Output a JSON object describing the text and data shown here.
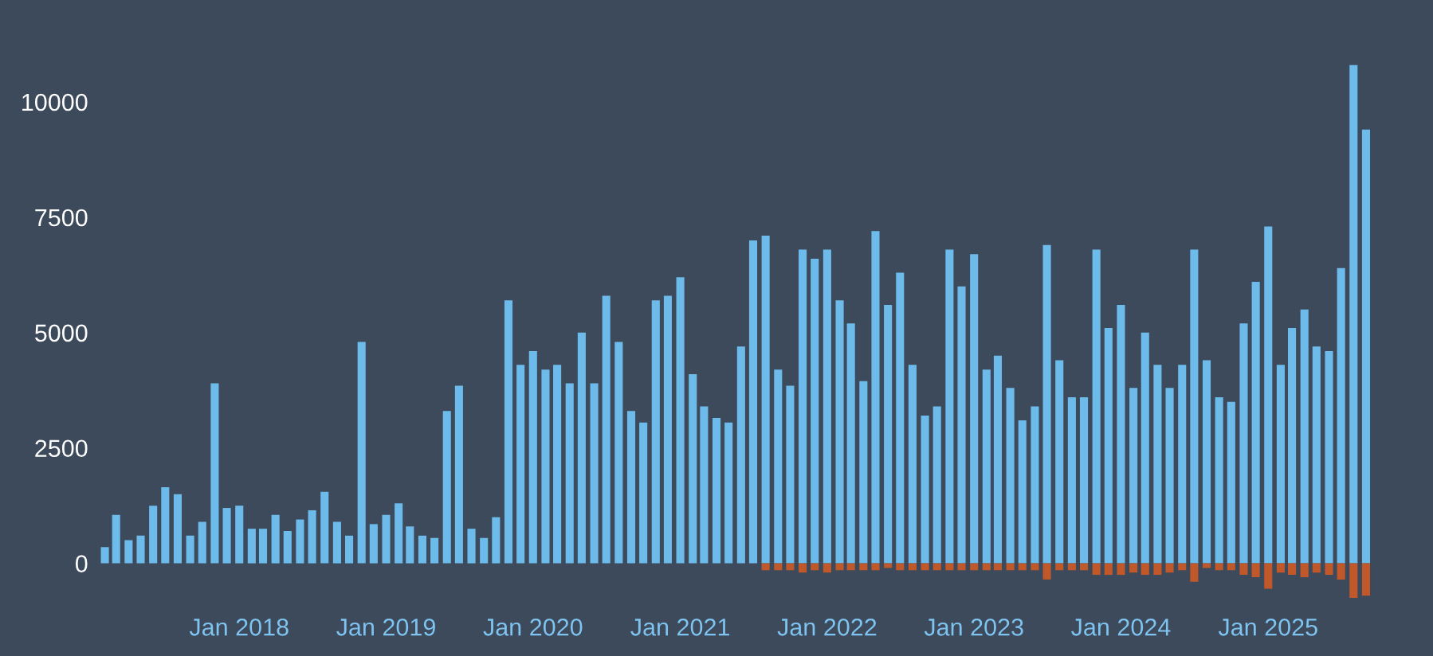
{
  "chart_data": {
    "type": "bar",
    "grid": false,
    "legend": false,
    "x": [
      "2017-02",
      "2017-03",
      "2017-04",
      "2017-05",
      "2017-06",
      "2017-07",
      "2017-08",
      "2017-09",
      "2017-10",
      "2017-11",
      "2017-12",
      "2018-01",
      "2018-02",
      "2018-03",
      "2018-04",
      "2018-05",
      "2018-06",
      "2018-07",
      "2018-08",
      "2018-09",
      "2018-10",
      "2018-11",
      "2018-12",
      "2019-01",
      "2019-02",
      "2019-03",
      "2019-04",
      "2019-05",
      "2019-06",
      "2019-07",
      "2019-08",
      "2019-09",
      "2019-10",
      "2019-11",
      "2019-12",
      "2020-01",
      "2020-02",
      "2020-03",
      "2020-04",
      "2020-05",
      "2020-06",
      "2020-07",
      "2020-08",
      "2020-09",
      "2020-10",
      "2020-11",
      "2020-12",
      "2021-01",
      "2021-02",
      "2021-03",
      "2021-04",
      "2021-05",
      "2021-06",
      "2021-07",
      "2021-08",
      "2021-09",
      "2021-10",
      "2021-11",
      "2021-12",
      "2022-01",
      "2022-02",
      "2022-03",
      "2022-04",
      "2022-05",
      "2022-06",
      "2022-07",
      "2022-08",
      "2022-09",
      "2022-10",
      "2022-11",
      "2022-12",
      "2023-01",
      "2023-02",
      "2023-03",
      "2023-04",
      "2023-05",
      "2023-06",
      "2023-07",
      "2023-08",
      "2023-09",
      "2023-10",
      "2023-11",
      "2023-12",
      "2024-01",
      "2024-02",
      "2024-03",
      "2024-04",
      "2024-05",
      "2024-06",
      "2024-07",
      "2024-08",
      "2024-09",
      "2024-10",
      "2024-11",
      "2024-12",
      "2025-01",
      "2025-02",
      "2025-03",
      "2025-04",
      "2025-05",
      "2025-06",
      "2025-07",
      "2025-08",
      "2025-09"
    ],
    "xticks": [
      {
        "value": "2018-01",
        "label": "Jan 2018"
      },
      {
        "value": "2019-01",
        "label": "Jan 2019"
      },
      {
        "value": "2020-01",
        "label": "Jan 2020"
      },
      {
        "value": "2021-01",
        "label": "Jan 2021"
      },
      {
        "value": "2022-01",
        "label": "Jan 2022"
      },
      {
        "value": "2023-01",
        "label": "Jan 2023"
      },
      {
        "value": "2024-01",
        "label": "Jan 2024"
      },
      {
        "value": "2025-01",
        "label": "Jan 2025"
      }
    ],
    "xlim": [
      "2017-01-10",
      "2025-09-25"
    ],
    "ylim": [
      -800,
      11000
    ],
    "yticks": [
      0,
      2500,
      5000,
      7500,
      10000
    ],
    "series": [
      {
        "color": "#6cbbea",
        "values": [
          350,
          1050,
          500,
          600,
          1250,
          1650,
          1500,
          600,
          900,
          3900,
          1200,
          1250,
          750,
          750,
          1050,
          700,
          950,
          1150,
          1550,
          900,
          600,
          4800,
          850,
          1050,
          1300,
          800,
          600,
          550,
          3300,
          3850,
          750,
          550,
          1000,
          5700,
          4300,
          4600,
          4200,
          4300,
          3900,
          5000,
          3900,
          5800,
          4800,
          3300,
          3050,
          5700,
          5800,
          6200,
          4100,
          3400,
          3150,
          3050,
          4700,
          7000,
          7100,
          4200,
          3850,
          6800,
          6600,
          6800,
          5700,
          5200,
          3950,
          7200,
          5600,
          6300,
          4300,
          3200,
          3400,
          6800,
          6000,
          6700,
          4200,
          4500,
          3800,
          3100,
          3400,
          6900,
          4400,
          3600,
          3600,
          6800,
          5100,
          5600,
          3800,
          5000,
          4300,
          3800,
          4300,
          6800,
          4400,
          3600,
          3500,
          5200,
          6100,
          7300,
          4300,
          5100,
          5500,
          4700,
          4600,
          6400,
          10800,
          9400
        ]
      },
      {
        "color": "#c0582a",
        "values": [
          null,
          null,
          null,
          null,
          null,
          null,
          null,
          null,
          null,
          null,
          null,
          null,
          null,
          null,
          null,
          null,
          null,
          null,
          null,
          null,
          null,
          null,
          null,
          null,
          null,
          null,
          null,
          null,
          null,
          null,
          null,
          null,
          null,
          null,
          null,
          null,
          null,
          null,
          null,
          null,
          null,
          null,
          null,
          null,
          null,
          null,
          null,
          null,
          null,
          null,
          null,
          null,
          null,
          null,
          -150,
          -150,
          -150,
          -200,
          -150,
          -200,
          -150,
          -150,
          -150,
          -150,
          -100,
          -150,
          -150,
          -150,
          -150,
          -150,
          -150,
          -150,
          -150,
          -150,
          -150,
          -150,
          -150,
          -350,
          -150,
          -150,
          -150,
          -250,
          -250,
          -250,
          -200,
          -250,
          -250,
          -200,
          -150,
          -400,
          -100,
          -150,
          -150,
          -250,
          -300,
          -550,
          -200,
          -250,
          -300,
          -200,
          -250,
          -350,
          -750,
          -700
        ]
      }
    ]
  }
}
